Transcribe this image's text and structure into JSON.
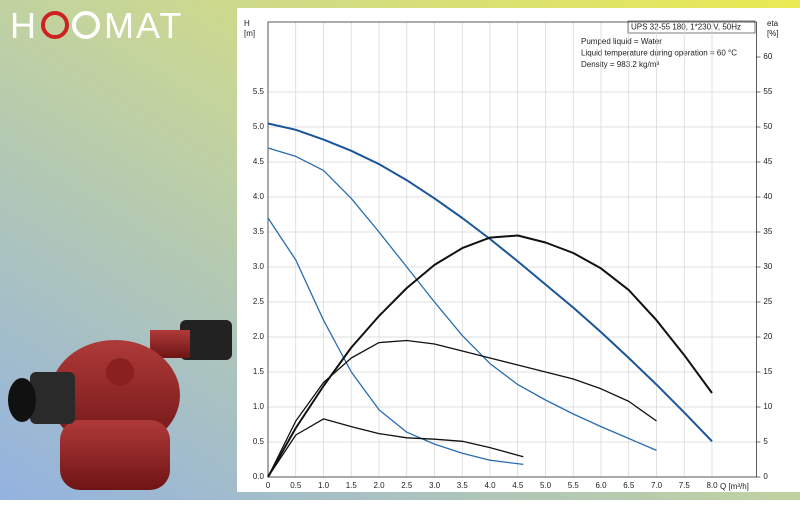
{
  "logo": {
    "left": "H",
    "right": "MAT"
  },
  "chart_data": {
    "type": "line",
    "title": "UPS 32-55 180, 1*230 V, 50Hz",
    "notes": [
      "Pumped liquid = Water",
      "Liquid temperature during operation = 60 °C",
      "Density = 983.2 kg/m³"
    ],
    "y_label": "H",
    "y_unit": "[m]",
    "y2_label": "eta",
    "y2_unit": "[%]",
    "x_label": "Q [m³/h]",
    "grid": true,
    "xlim": [
      0,
      8.8
    ],
    "xticks": [
      0,
      0.5,
      {
        "value": 1,
        "label": "1.0"
      },
      1.5,
      {
        "value": 2,
        "label": "2.0"
      },
      2.5,
      {
        "value": 3,
        "label": "3.0"
      },
      3.5,
      {
        "value": 4,
        "label": "4.0"
      },
      4.5,
      {
        "value": 5,
        "label": "5.0"
      },
      5.5,
      {
        "value": 6,
        "label": "6.0"
      },
      6.5,
      {
        "value": 7,
        "label": "7.0"
      },
      7.5,
      {
        "value": 8,
        "label": "8.0"
      }
    ],
    "ylim": [
      0,
      6.5
    ],
    "yticks": [
      {
        "value": 0,
        "label": "0.0"
      },
      0.5,
      {
        "value": 1,
        "label": "1.0"
      },
      1.5,
      {
        "value": 2,
        "label": "2.0"
      },
      2.5,
      {
        "value": 3,
        "label": "3.0"
      },
      3.5,
      {
        "value": 4,
        "label": "4.0"
      },
      4.5,
      {
        "value": 5,
        "label": "5.0"
      },
      5.5
    ],
    "y2lim": [
      0,
      65
    ],
    "y2ticks": [
      0,
      5,
      10,
      15,
      20,
      25,
      30,
      35,
      40,
      45,
      50,
      55,
      60
    ],
    "series": [
      {
        "color": "#1a5597",
        "axis": "y",
        "x": [
          0,
          0.5,
          1,
          1.5,
          2,
          2.5,
          3,
          3.5,
          4,
          4.5,
          5,
          5.5,
          6,
          6.5,
          7,
          7.5,
          8
        ],
        "values": [
          5.05,
          4.96,
          4.82,
          4.66,
          4.47,
          4.24,
          3.98,
          3.7,
          3.4,
          3.08,
          2.75,
          2.42,
          2.07,
          1.7,
          1.32,
          0.92,
          0.51
        ]
      },
      {
        "color": "#2a6cb0",
        "axis": "y",
        "x": [
          0,
          0.5,
          1,
          1.5,
          2,
          2.5,
          3,
          3.5,
          4,
          4.5,
          5,
          5.5,
          6,
          6.5,
          7
        ],
        "values": [
          4.7,
          4.58,
          4.38,
          3.98,
          3.5,
          3.0,
          2.5,
          2.02,
          1.62,
          1.32,
          1.1,
          0.9,
          0.72,
          0.55,
          0.38
        ]
      },
      {
        "color": "#2a6cb0",
        "axis": "y",
        "x": [
          0,
          0.5,
          1,
          1.5,
          2,
          2.5,
          3,
          3.5,
          4,
          4.6
        ],
        "values": [
          3.7,
          3.1,
          2.24,
          1.5,
          0.96,
          0.64,
          0.47,
          0.34,
          0.24,
          0.18
        ]
      },
      {
        "color": "#111111",
        "axis": "y2",
        "x": [
          0,
          0.5,
          1,
          1.5,
          2,
          2.5,
          3,
          3.5,
          4,
          4.5,
          5,
          5.5,
          6,
          6.5,
          7,
          7.5,
          8
        ],
        "values": [
          0,
          7,
          13,
          18.5,
          23,
          27,
          30.3,
          32.7,
          34.2,
          34.5,
          33.5,
          32,
          29.8,
          26.7,
          22.4,
          17.4,
          12
        ]
      },
      {
        "color": "#111111",
        "axis": "y2",
        "x": [
          0,
          0.5,
          1,
          1.5,
          2,
          2.5,
          3,
          3.5,
          4,
          4.5,
          5,
          5.5,
          6,
          6.5,
          7
        ],
        "values": [
          0,
          8,
          13.5,
          17,
          19.2,
          19.5,
          19,
          18,
          17,
          16,
          15,
          14,
          12.6,
          10.8,
          8
        ]
      },
      {
        "color": "#111111",
        "axis": "y2",
        "x": [
          0,
          0.5,
          1,
          1.5,
          2,
          2.5,
          3,
          3.5,
          4,
          4.6
        ],
        "values": [
          0,
          6,
          8.3,
          7.2,
          6.2,
          5.6,
          5.4,
          5.1,
          4.2,
          2.9
        ]
      }
    ]
  }
}
